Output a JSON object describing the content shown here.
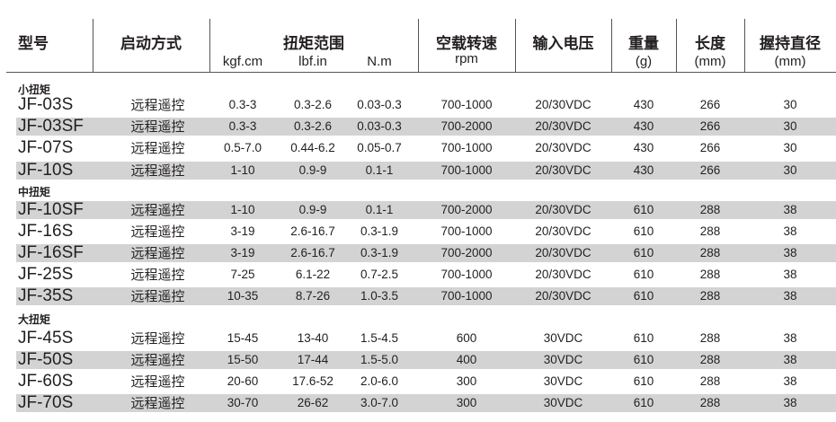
{
  "header": {
    "model": "型号",
    "start_mode": "启动方式",
    "torque_range": "扭矩范围",
    "torque_units": [
      "kgf.cm",
      "lbf.in",
      "N.m"
    ],
    "speed": "空载转速",
    "speed_unit": "rpm",
    "voltage": "输入电压",
    "weight": "重量",
    "weight_unit": "(g)",
    "length": "长度",
    "length_unit": "(mm)",
    "grip": "握持直径",
    "grip_unit": "(mm)"
  },
  "groups": [
    {
      "label": "小扭矩",
      "rows": [
        {
          "model": "JF-03S",
          "mode": "远程遥控",
          "kgf": "0.3-3",
          "lbf": "0.3-2.6",
          "nm": "0.03-0.3",
          "rpm": "700-1000",
          "voltage": "20/30VDC",
          "weight": "430",
          "length": "266",
          "grip": "30"
        },
        {
          "model": "JF-03SF",
          "mode": "远程遥控",
          "kgf": "0.3-3",
          "lbf": "0.3-2.6",
          "nm": "0.03-0.3",
          "rpm": "700-2000",
          "voltage": "20/30VDC",
          "weight": "430",
          "length": "266",
          "grip": "30"
        },
        {
          "model": "JF-07S",
          "mode": "远程遥控",
          "kgf": "0.5-7.0",
          "lbf": "0.44-6.2",
          "nm": "0.05-0.7",
          "rpm": "700-1000",
          "voltage": "20/30VDC",
          "weight": "430",
          "length": "266",
          "grip": "30"
        },
        {
          "model": "JF-10S",
          "mode": "远程遥控",
          "kgf": "1-10",
          "lbf": "0.9-9",
          "nm": "0.1-1",
          "rpm": "700-1000",
          "voltage": "20/30VDC",
          "weight": "430",
          "length": "266",
          "grip": "30"
        }
      ]
    },
    {
      "label": "中扭矩",
      "rows": [
        {
          "model": "JF-10SF",
          "mode": "远程遥控",
          "kgf": "1-10",
          "lbf": "0.9-9",
          "nm": "0.1-1",
          "rpm": "700-2000",
          "voltage": "20/30VDC",
          "weight": "610",
          "length": "288",
          "grip": "38"
        },
        {
          "model": "JF-16S",
          "mode": "远程遥控",
          "kgf": "3-19",
          "lbf": "2.6-16.7",
          "nm": "0.3-1.9",
          "rpm": "700-1000",
          "voltage": "20/30VDC",
          "weight": "610",
          "length": "288",
          "grip": "38"
        },
        {
          "model": "JF-16SF",
          "mode": "远程遥控",
          "kgf": "3-19",
          "lbf": "2.6-16.7",
          "nm": "0.3-1.9",
          "rpm": "700-2000",
          "voltage": "20/30VDC",
          "weight": "610",
          "length": "288",
          "grip": "38"
        },
        {
          "model": "JF-25S",
          "mode": "远程遥控",
          "kgf": "7-25",
          "lbf": "6.1-22",
          "nm": "0.7-2.5",
          "rpm": "700-1000",
          "voltage": "20/30VDC",
          "weight": "610",
          "length": "288",
          "grip": "38"
        },
        {
          "model": "JF-35S",
          "mode": "远程遥控",
          "kgf": "10-35",
          "lbf": "8.7-26",
          "nm": "1.0-3.5",
          "rpm": "700-1000",
          "voltage": "20/30VDC",
          "weight": "610",
          "length": "288",
          "grip": "38"
        }
      ]
    },
    {
      "label": "大扭矩",
      "rows": [
        {
          "model": "JF-45S",
          "mode": "远程遥控",
          "kgf": "15-45",
          "lbf": "13-40",
          "nm": "1.5-4.5",
          "rpm": "600",
          "voltage": "30VDC",
          "weight": "610",
          "length": "288",
          "grip": "38"
        },
        {
          "model": "JF-50S",
          "mode": "远程遥控",
          "kgf": "15-50",
          "lbf": "17-44",
          "nm": "1.5-5.0",
          "rpm": "400",
          "voltage": "30VDC",
          "weight": "610",
          "length": "288",
          "grip": "38"
        },
        {
          "model": "JF-60S",
          "mode": "远程遥控",
          "kgf": "20-60",
          "lbf": "17.6-52",
          "nm": "2.0-6.0",
          "rpm": "300",
          "voltage": "30VDC",
          "weight": "610",
          "length": "288",
          "grip": "38"
        },
        {
          "model": "JF-70S",
          "mode": "远程遥控",
          "kgf": "30-70",
          "lbf": "26-62",
          "nm": "3.0-7.0",
          "rpm": "300",
          "voltage": "30VDC",
          "weight": "610",
          "length": "288",
          "grip": "38"
        }
      ]
    }
  ],
  "colors": {
    "row_shade": "#d3d3d3",
    "text": "#231f20"
  }
}
